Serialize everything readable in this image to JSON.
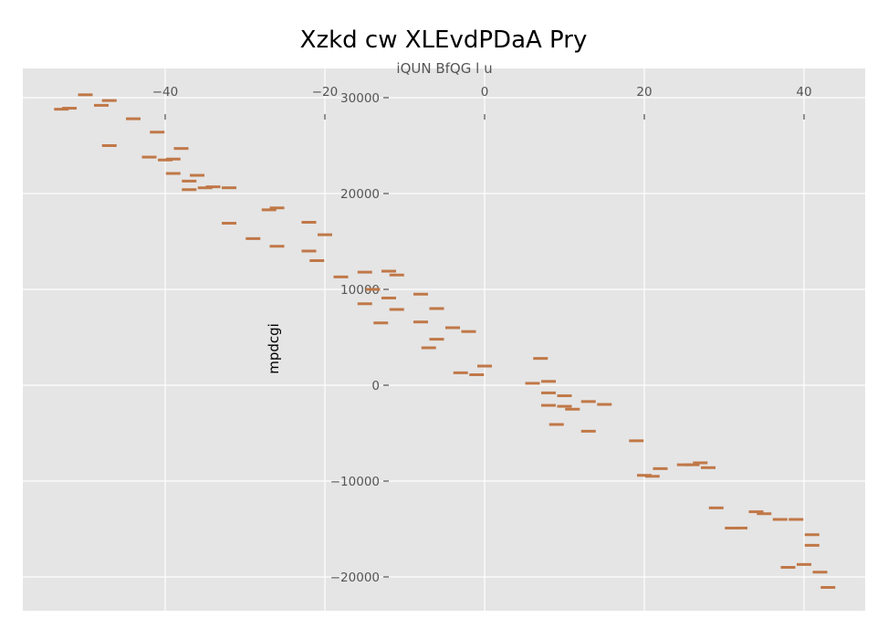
{
  "chart_data": {
    "type": "scatter",
    "title": "Xzkd cw  XLEvdPDaA Pry",
    "xlabel": "iQUN BfQG l u",
    "ylabel": "mpdcgi",
    "xlim": [
      -59,
      48
    ],
    "ylim": [
      -23500,
      33000
    ],
    "x_ticks": [
      -40,
      -20,
      0,
      20,
      40
    ],
    "y_ticks": [
      30000,
      20000,
      10000,
      0,
      -10000,
      -20000
    ],
    "x_tick_labels": [
      "−40",
      "−20",
      "0",
      "20",
      "40"
    ],
    "y_tick_labels": [
      "30000",
      "20000",
      "10000",
      "0",
      "−10000",
      "−20000"
    ],
    "x_axis_position": "top",
    "y_axis_crosses_x": -12,
    "grid": true,
    "background": "#e5e5e5",
    "marker": "horizontal-dash",
    "series": [
      {
        "color": "#c07848",
        "points": [
          [
            -53,
            28800
          ],
          [
            -52,
            28900
          ],
          [
            -50,
            30300
          ],
          [
            -48,
            29200
          ],
          [
            -47,
            29700
          ],
          [
            -47,
            25000
          ],
          [
            -44,
            27800
          ],
          [
            -42,
            23800
          ],
          [
            -41,
            26400
          ],
          [
            -40,
            23500
          ],
          [
            -39,
            23600
          ],
          [
            -39,
            22100
          ],
          [
            -38,
            24700
          ],
          [
            -37,
            21300
          ],
          [
            -37,
            20400
          ],
          [
            -36,
            21900
          ],
          [
            -35,
            20600
          ],
          [
            -34,
            20700
          ],
          [
            -32,
            20600
          ],
          [
            -32,
            16900
          ],
          [
            -29,
            15300
          ],
          [
            -27,
            18300
          ],
          [
            -26,
            18500
          ],
          [
            -26,
            14500
          ],
          [
            -22,
            14000
          ],
          [
            -22,
            17000
          ],
          [
            -21,
            13000
          ],
          [
            -20,
            15700
          ],
          [
            -18,
            11300
          ],
          [
            -15,
            8500
          ],
          [
            -15,
            11800
          ],
          [
            -14,
            10000
          ],
          [
            -12,
            11900
          ],
          [
            -12,
            9100
          ],
          [
            -13,
            6500
          ],
          [
            -11,
            11500
          ],
          [
            -11,
            7900
          ],
          [
            -8,
            6600
          ],
          [
            -8,
            9500
          ],
          [
            -7,
            3900
          ],
          [
            -6,
            4800
          ],
          [
            -6,
            8000
          ],
          [
            -4,
            6000
          ],
          [
            -3,
            1300
          ],
          [
            -2,
            5600
          ],
          [
            -1,
            1100
          ],
          [
            0,
            2000
          ],
          [
            6,
            200
          ],
          [
            7,
            2800
          ],
          [
            8,
            -800
          ],
          [
            8,
            400
          ],
          [
            8,
            -2100
          ],
          [
            9,
            -4100
          ],
          [
            10,
            -1100
          ],
          [
            10,
            -2200
          ],
          [
            11,
            -2500
          ],
          [
            13,
            -1700
          ],
          [
            13,
            -4800
          ],
          [
            15,
            -2000
          ],
          [
            19,
            -5800
          ],
          [
            20,
            -9400
          ],
          [
            21,
            -9500
          ],
          [
            22,
            -8700
          ],
          [
            25,
            -8300
          ],
          [
            26,
            -8300
          ],
          [
            27,
            -8100
          ],
          [
            28,
            -8600
          ],
          [
            29,
            -12800
          ],
          [
            31,
            -14900
          ],
          [
            32,
            -14900
          ],
          [
            34,
            -13200
          ],
          [
            35,
            -13400
          ],
          [
            37,
            -14000
          ],
          [
            38,
            -19000
          ],
          [
            39,
            -14000
          ],
          [
            40,
            -18700
          ],
          [
            41,
            -16700
          ],
          [
            41,
            -15600
          ],
          [
            42,
            -19500
          ],
          [
            43,
            -21100
          ]
        ]
      }
    ]
  }
}
